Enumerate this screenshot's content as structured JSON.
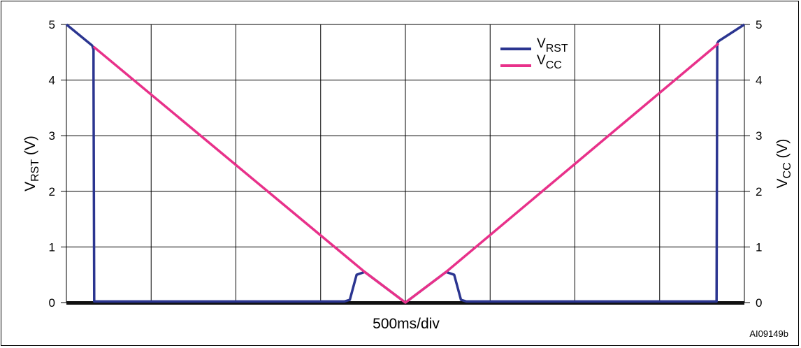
{
  "chart_data": {
    "type": "line",
    "xlabel": "500ms/div",
    "ylabel_left": {
      "main": "V",
      "sub": "RST",
      "unit": " (V)"
    },
    "ylabel_right": {
      "main": "V",
      "sub": "CC",
      "unit": " (V)"
    },
    "ylim": [
      0,
      5
    ],
    "xlim": [
      0,
      10
    ],
    "x_divisions": 8,
    "grid": true,
    "legend_position": "top-right",
    "y_ticks_left": [
      "0",
      "1",
      "2",
      "3",
      "4",
      "5"
    ],
    "y_ticks_right": [
      "0",
      "1",
      "2",
      "3",
      "4",
      "5"
    ],
    "series": [
      {
        "key": "vrst",
        "name_main": "V",
        "name_sub": "RST",
        "color": "#2b3590",
        "points": [
          [
            0,
            5
          ],
          [
            0.38,
            4.62
          ],
          [
            0.4,
            4.55
          ],
          [
            0.4,
            4.1
          ],
          [
            0.41,
            0.02
          ],
          [
            4.1,
            0.02
          ],
          [
            4.18,
            0.05
          ],
          [
            4.28,
            0.5
          ],
          [
            4.4,
            0.55
          ],
          [
            5,
            0
          ],
          [
            5.6,
            0.55
          ],
          [
            5.72,
            0.5
          ],
          [
            5.82,
            0.05
          ],
          [
            5.9,
            0.02
          ],
          [
            9.59,
            0.02
          ],
          [
            9.6,
            4.66
          ],
          [
            9.62,
            4.7
          ],
          [
            10,
            5
          ]
        ]
      },
      {
        "key": "vcc",
        "name_main": "V",
        "name_sub": "CC",
        "color": "#e8318a",
        "points": [
          [
            0.4,
            4.6
          ],
          [
            4.4,
            0.55
          ],
          [
            5,
            0
          ],
          [
            5.6,
            0.55
          ],
          [
            9.62,
            4.66
          ]
        ]
      }
    ]
  },
  "footnote": "AI09149b"
}
